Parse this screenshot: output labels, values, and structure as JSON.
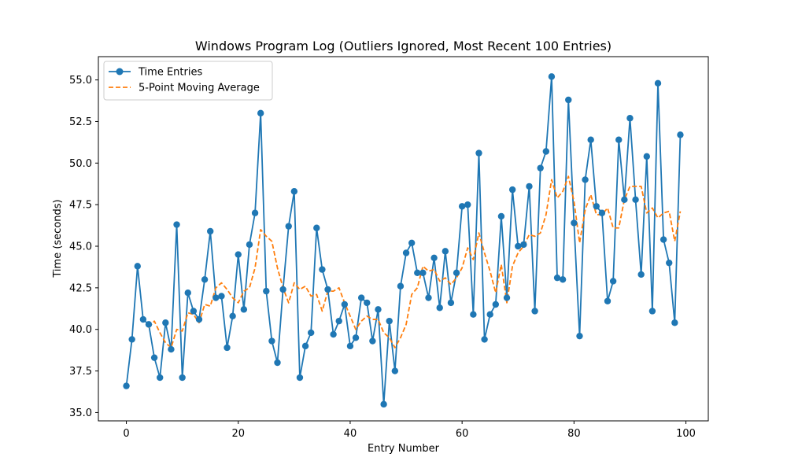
{
  "chart_data": {
    "type": "line",
    "title": "Windows Program Log (Outliers Ignored, Most Recent 100 Entries)",
    "xlabel": "Entry Number",
    "ylabel": "Time (seconds)",
    "xlim": [
      -5,
      104
    ],
    "ylim": [
      34.5,
      56.4
    ],
    "xticks": [
      0,
      20,
      40,
      60,
      80,
      100
    ],
    "xtick_labels": [
      "0",
      "20",
      "40",
      "60",
      "80",
      "100"
    ],
    "yticks": [
      35.0,
      37.5,
      40.0,
      42.5,
      45.0,
      47.5,
      50.0,
      52.5,
      55.0
    ],
    "ytick_labels": [
      "35.0",
      "37.5",
      "40.0",
      "42.5",
      "45.0",
      "47.5",
      "50.0",
      "52.5",
      "55.0"
    ],
    "grid": false,
    "legend_position": "top-left",
    "series": [
      {
        "name": "Time Entries",
        "style": "solid-with-markers",
        "color": "#1f77b4",
        "x": [
          0,
          1,
          2,
          3,
          4,
          5,
          6,
          7,
          8,
          9,
          10,
          11,
          12,
          13,
          14,
          15,
          16,
          17,
          18,
          19,
          20,
          21,
          22,
          23,
          24,
          25,
          26,
          27,
          28,
          29,
          30,
          31,
          32,
          33,
          34,
          35,
          36,
          37,
          38,
          39,
          40,
          41,
          42,
          43,
          44,
          45,
          46,
          47,
          48,
          49,
          50,
          51,
          52,
          53,
          54,
          55,
          56,
          57,
          58,
          59,
          60,
          61,
          62,
          63,
          64,
          65,
          66,
          67,
          68,
          69,
          70,
          71,
          72,
          73,
          74,
          75,
          76,
          77,
          78,
          79,
          80,
          81,
          82,
          83,
          84,
          85,
          86,
          87,
          88,
          89,
          90,
          91,
          92,
          93,
          94,
          95,
          96,
          97,
          98,
          99
        ],
        "y": [
          36.6,
          39.4,
          43.8,
          40.6,
          40.3,
          38.3,
          37.1,
          40.4,
          38.8,
          46.3,
          37.1,
          42.2,
          41.1,
          40.6,
          43.0,
          45.9,
          41.9,
          42.0,
          38.9,
          40.8,
          44.5,
          41.2,
          45.1,
          47.0,
          53.0,
          42.3,
          39.3,
          38.0,
          42.4,
          46.2,
          48.3,
          37.1,
          39.0,
          39.8,
          46.1,
          43.6,
          42.4,
          39.7,
          40.5,
          41.5,
          39.0,
          39.5,
          41.9,
          41.6,
          39.3,
          41.2,
          35.5,
          40.5,
          37.5,
          42.6,
          44.6,
          45.2,
          43.4,
          43.4,
          41.9,
          44.3,
          41.3,
          44.7,
          41.6,
          43.4,
          47.4,
          47.5,
          40.9,
          50.6,
          39.4,
          40.9,
          41.5,
          46.8,
          41.9,
          48.4,
          45.0,
          45.1,
          48.6,
          41.1,
          49.7,
          50.7,
          55.2,
          43.1,
          43.0,
          53.8,
          46.4,
          39.6,
          49.0,
          51.4,
          47.4,
          47.0,
          41.7,
          42.9,
          51.4,
          47.8,
          52.7,
          47.8,
          43.3,
          50.4,
          41.1,
          54.8,
          45.4,
          44.0,
          40.4,
          51.7
        ]
      },
      {
        "name": "5-Point Moving Average",
        "style": "dashed",
        "color": "#ff7f0e",
        "x": [
          4,
          5,
          6,
          7,
          8,
          9,
          10,
          11,
          12,
          13,
          14,
          15,
          16,
          17,
          18,
          19,
          20,
          21,
          22,
          23,
          24,
          25,
          26,
          27,
          28,
          29,
          30,
          31,
          32,
          33,
          34,
          35,
          36,
          37,
          38,
          39,
          40,
          41,
          42,
          43,
          44,
          45,
          46,
          47,
          48,
          49,
          50,
          51,
          52,
          53,
          54,
          55,
          56,
          57,
          58,
          59,
          60,
          61,
          62,
          63,
          64,
          65,
          66,
          67,
          68,
          69,
          70,
          71,
          72,
          73,
          74,
          75,
          76,
          77,
          78,
          79,
          80,
          81,
          82,
          83,
          84,
          85,
          86,
          87,
          88,
          89,
          90,
          91,
          92,
          93,
          94,
          95,
          96,
          97,
          98,
          99
        ],
        "y": [
          40.1,
          40.5,
          39.8,
          39.2,
          38.9,
          40.0,
          39.9,
          41.0,
          40.9,
          40.4,
          41.5,
          41.4,
          42.5,
          42.8,
          42.4,
          41.9,
          41.6,
          42.3,
          42.5,
          43.7,
          46.0,
          45.6,
          45.3,
          43.7,
          42.5,
          41.6,
          42.8,
          42.4,
          42.6,
          42.0,
          42.1,
          41.1,
          42.3,
          42.3,
          42.5,
          41.6,
          40.8,
          40.0,
          40.5,
          40.8,
          40.6,
          40.6,
          39.8,
          39.5,
          38.9,
          39.5,
          40.3,
          42.1,
          42.5,
          43.8,
          43.5,
          43.6,
          42.9,
          43.1,
          42.7,
          43.1,
          43.7,
          44.9,
          44.2,
          45.8,
          44.6,
          43.5,
          42.2,
          43.9,
          41.6,
          43.8,
          44.6,
          45.0,
          45.7,
          45.6,
          45.8,
          46.9,
          49.0,
          47.9,
          48.3,
          49.2,
          47.7,
          45.2,
          47.2,
          48.1,
          46.9,
          46.9,
          47.3,
          46.1,
          46.1,
          47.8,
          48.6,
          48.6,
          48.6,
          47.0,
          47.3,
          46.7,
          47.0,
          47.1,
          45.3,
          47.1
        ]
      }
    ]
  }
}
